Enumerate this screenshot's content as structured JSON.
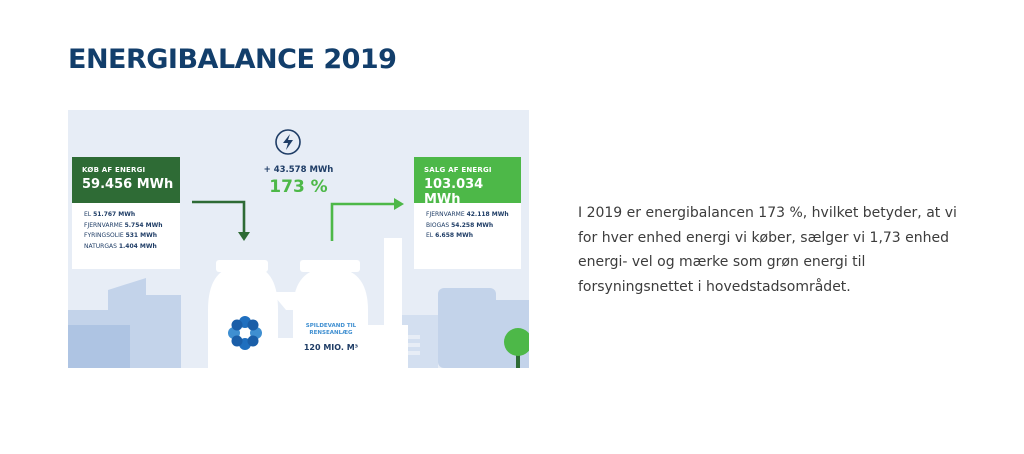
{
  "title": "ENERGIBALANCE 2019",
  "infographic": {
    "buy_card": {
      "label": "KØB AF ENERGI",
      "value": "59.456 MWh",
      "items": [
        {
          "name": "EL",
          "value": "51.767 MWh"
        },
        {
          "name": "FJERNVARME",
          "value": "5.754 MWh"
        },
        {
          "name": "FYRINGSOLIE",
          "value": "531 MWh"
        },
        {
          "name": "NATURGAS",
          "value": "1.404 MWh"
        }
      ]
    },
    "sell_card": {
      "label": "SALG AF ENERGI",
      "value": "103.034 MWh",
      "items": [
        {
          "name": "FJERNVARME",
          "value": "42.118 MWh"
        },
        {
          "name": "BIOGAS",
          "value": "54.258 MWh"
        },
        {
          "name": "EL",
          "value": "6.658 MWh"
        }
      ]
    },
    "surplus": "+ 43.578 MWh",
    "percent": "173 %",
    "wastewater_label": "SPILDEVAND TIL RENSEANLÆG",
    "wastewater_value": "120 MIO. M³",
    "colors": {
      "dark_green": "#2e6b35",
      "light_green": "#4db848",
      "navy": "#1f3d66",
      "background": "#e7edf6"
    },
    "icons": [
      "lightning-icon",
      "logo-flower-icon",
      "tree-icon"
    ]
  },
  "body_text": "I 2019 er energibalancen 173 %, hvilket betyder, at vi for hver enhed energi vi køber, sælger vi  1,73 enhed energi- vel og mærke som grøn energi til forsyningsnettet i hovedstadsområdet."
}
